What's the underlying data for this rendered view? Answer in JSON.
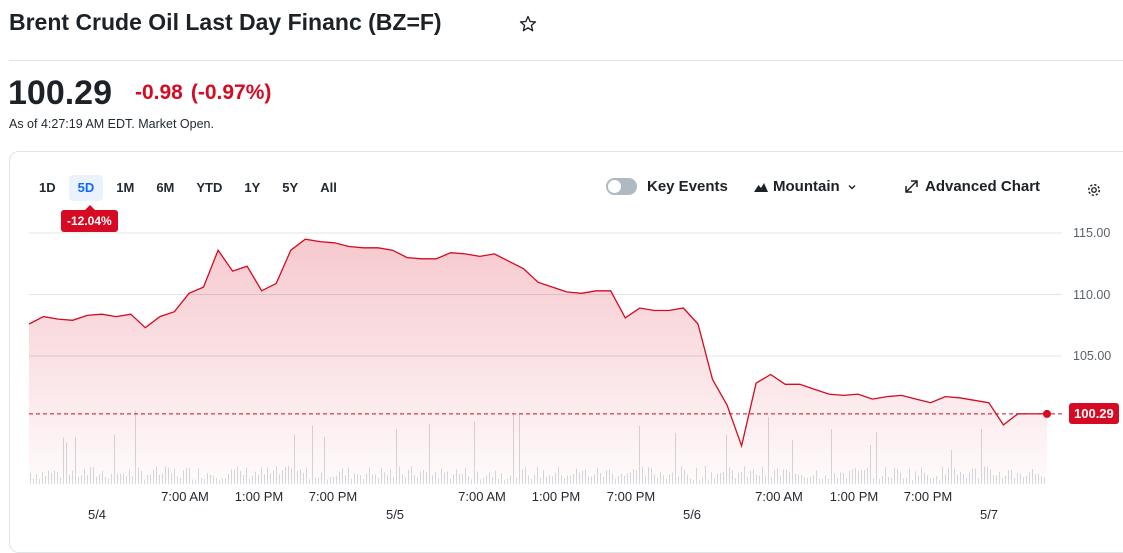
{
  "header": {
    "title": "Brent Crude Oil Last Day Financ (BZ=F)"
  },
  "quote": {
    "price": "100.29",
    "change": "-0.98",
    "change_percent": "(-0.97%)",
    "as_of": "As of 4:27:19 AM EDT. Market Open."
  },
  "ranges": [
    "1D",
    "5D",
    "1M",
    "6M",
    "YTD",
    "1Y",
    "5Y",
    "All"
  ],
  "active_range": "5D",
  "range_badge": "-12.04%",
  "controls": {
    "key_events": "Key Events",
    "chart_type": "Mountain",
    "advanced_chart": "Advanced Chart"
  },
  "colors": {
    "accent": "#d60a22",
    "active_tab": "#0f69ff"
  },
  "chart_data": {
    "type": "area",
    "yticks": [
      "115.00",
      "110.00",
      "105.00"
    ],
    "ylim": [
      97,
      116
    ],
    "last_price_label": "100.29",
    "xtime_labels": [
      "7:00 AM",
      "1:00 PM",
      "7:00 PM",
      "7:00 AM",
      "1:00 PM",
      "7:00 PM",
      "7:00 AM",
      "1:00 PM",
      "7:00 PM"
    ],
    "xdate_labels": [
      "5/4",
      "5/5",
      "5/6",
      "5/7"
    ],
    "x": [
      0,
      1,
      2,
      3,
      4,
      5,
      6,
      7,
      8,
      9,
      10,
      11,
      12,
      13,
      14,
      15,
      16,
      17,
      18,
      19,
      20,
      21,
      22,
      23,
      24,
      25,
      26,
      27,
      28,
      29,
      30,
      31,
      32,
      33,
      34,
      35,
      36,
      37,
      38,
      39,
      40,
      41,
      42,
      43,
      44,
      45,
      46,
      47,
      48,
      49,
      50,
      51,
      52,
      53,
      54,
      55,
      56,
      57,
      58,
      59,
      60,
      61,
      62,
      63,
      64,
      65,
      66,
      67,
      68,
      69,
      70,
      71,
      72,
      73,
      74,
      75,
      76,
      77,
      78,
      79,
      80,
      81,
      82,
      83,
      84,
      85
    ],
    "values": [
      107.6,
      108.2,
      108.0,
      107.9,
      108.3,
      108.4,
      108.2,
      108.4,
      107.3,
      108.2,
      108.6,
      110.1,
      110.6,
      113.6,
      111.9,
      112.3,
      110.3,
      110.9,
      113.6,
      114.5,
      114.3,
      114.2,
      113.9,
      113.8,
      113.8,
      113.6,
      113.0,
      112.9,
      112.9,
      113.4,
      113.3,
      113.1,
      113.3,
      112.7,
      112.1,
      111.0,
      110.6,
      110.2,
      110.1,
      110.3,
      110.3,
      108.1,
      108.9,
      108.7,
      108.7,
      108.9,
      107.6,
      103.1,
      101.0,
      97.7,
      102.8,
      103.5,
      102.7,
      102.7,
      102.3,
      101.9,
      101.8,
      101.9,
      101.5,
      101.7,
      101.8,
      101.5,
      101.2,
      101.7,
      101.6,
      101.4,
      101.2,
      99.4,
      100.3,
      100.29,
      100.3,
      100.3,
      100.3,
      100.3,
      100.3,
      100.3,
      100.3,
      100.3,
      100.3,
      100.3,
      100.3,
      100.3,
      100.3,
      100.3,
      100.3,
      100.3
    ],
    "grid": true,
    "line_color": "#d60a22"
  }
}
